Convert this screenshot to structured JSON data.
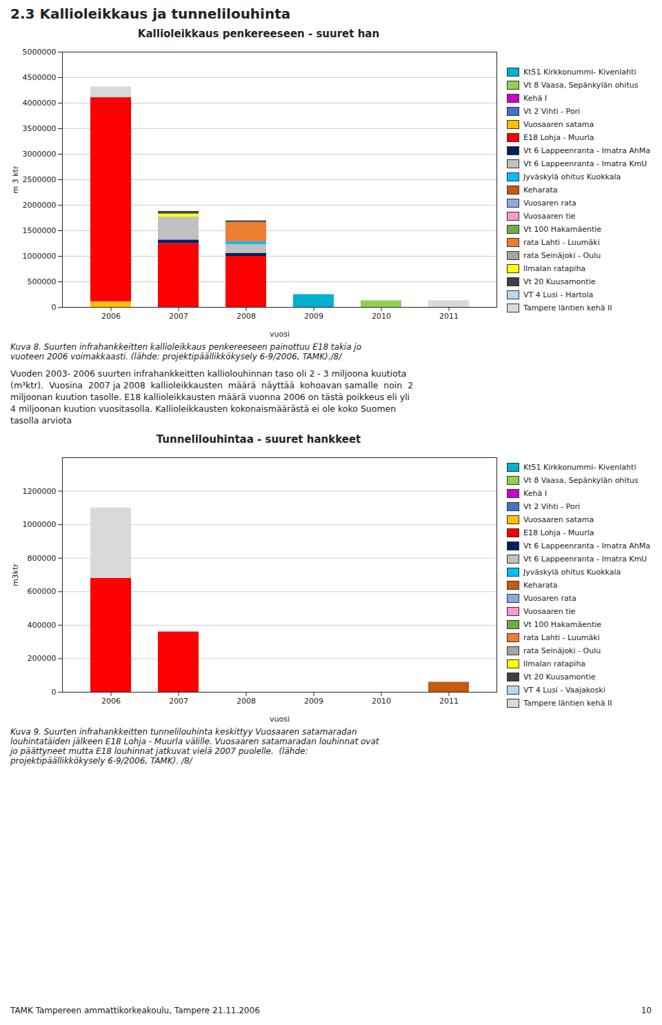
{
  "page_title": "2.3 Kallioleikkaus ja tunnelilouhinta",
  "body_text": "Vuoden 2003- 2006 suurten infrahankkeitten kalliolouhinnan taso oli 2 - 3 miljoona kuutiota\n(m³ktr).  Vuosina  2007 ja 2008  kallioleikkausten  määrä  näyttää  kohoavan samalle  noin  2\nmiljoonan kuution tasolle. E18 kallioleikkausten määrä vuonna 2006 on tästä poikkeus eli yli\n4 miljoonan kuution vuositasolla. Kallioleikkausten kokonaismäärästä ei ole koko Suomen\ntasolla arviota",
  "footer": [
    "TAMK Tampereen ammattikorkeakoulu, Tampere 21.11.2006",
    "10"
  ],
  "chart_data": [
    {
      "type": "bar",
      "stacked": true,
      "grid": true,
      "title": "Kallioleikkaus penkereeseen - suuret han",
      "ylabel": "m 3 ktr",
      "xlabel": "vuosi",
      "caption": "Kuva 8. Suurten infrahankkeitten kallioleikkaus penkereeseen painottuu E18 takia jo\nvuoteen 2006 voimakkaasti. (lähde: projektipäällikkökysely 6-9/2006, TAMK)./8/",
      "categories": [
        "2006",
        "2007",
        "2008",
        "2009",
        "2010",
        "2011"
      ],
      "ylim": [
        0,
        5000000
      ],
      "yticks": [
        0,
        500000,
        1000000,
        1500000,
        2000000,
        2500000,
        3000000,
        3500000,
        4000000,
        4500000,
        5000000
      ],
      "series": [
        {
          "name": "Kt51 Kirkkonummi- Kivenlahti",
          "color": "#00B0D0",
          "values": [
            0,
            0,
            0,
            250000,
            0,
            0
          ]
        },
        {
          "name": "Vt 8 Vaasa, Sepänkylän ohitus",
          "color": "#92D050",
          "values": [
            0,
            0,
            0,
            0,
            130000,
            0
          ]
        },
        {
          "name": "Kehä I",
          "color": "#CC00CC",
          "values": [
            0,
            0,
            0,
            0,
            0,
            0
          ]
        },
        {
          "name": "Vt 2 Vihti - Pori",
          "color": "#4472C4",
          "values": [
            0,
            0,
            0,
            0,
            0,
            0
          ]
        },
        {
          "name": "Vuosaaren satama",
          "color": "#FFC000",
          "values": [
            110000,
            0,
            0,
            0,
            0,
            0
          ]
        },
        {
          "name": "E18 Lohja - Muurla",
          "color": "#FF0000",
          "values": [
            4000000,
            1250000,
            1000000,
            0,
            0,
            0
          ]
        },
        {
          "name": "Vt 6 Lappeenranta - Imatra AhMa",
          "color": "#002060",
          "values": [
            0,
            70000,
            60000,
            0,
            0,
            0
          ]
        },
        {
          "name": "Vt 6 Lappeenranta - Imatra KmU",
          "color": "#C0C0C0",
          "values": [
            0,
            450000,
            170000,
            0,
            0,
            0
          ]
        },
        {
          "name": "Jyväskylä ohitus Kuokkala",
          "color": "#00BFFF",
          "values": [
            0,
            0,
            55000,
            0,
            0,
            0
          ]
        },
        {
          "name": "Keharata",
          "color": "#C55A11",
          "values": [
            0,
            0,
            0,
            0,
            0,
            0
          ]
        },
        {
          "name": "Vuosaren rata",
          "color": "#8EA9DB",
          "values": [
            0,
            0,
            0,
            0,
            0,
            0
          ]
        },
        {
          "name": "Vuosaaren tie",
          "color": "#FF99CC",
          "values": [
            0,
            0,
            0,
            0,
            0,
            0
          ]
        },
        {
          "name": "Vt 100 Hakamäentie",
          "color": "#70AD47",
          "values": [
            0,
            0,
            0,
            0,
            0,
            0
          ]
        },
        {
          "name": "rata Lahti - Luumäki",
          "color": "#ED7D31",
          "values": [
            0,
            0,
            380000,
            0,
            0,
            0
          ]
        },
        {
          "name": "rata Seinäjoki - Oulu",
          "color": "#A5A5A5",
          "values": [
            0,
            0,
            0,
            0,
            0,
            0
          ]
        },
        {
          "name": "Ilmalan ratapiha",
          "color": "#FFFF00",
          "values": [
            0,
            60000,
            0,
            0,
            0,
            0
          ]
        },
        {
          "name": "Vt 20 Kuusamontie",
          "color": "#404040",
          "values": [
            0,
            50000,
            30000,
            0,
            0,
            0
          ]
        },
        {
          "name": "VT 4 Lusi - Hartola",
          "color": "#BDD7EE",
          "values": [
            0,
            0,
            0,
            0,
            0,
            0
          ]
        },
        {
          "name": "Tampere läntien kehä II",
          "color": "#D9D9D9",
          "values": [
            210000,
            0,
            0,
            0,
            0,
            130000
          ]
        }
      ]
    },
    {
      "type": "bar",
      "stacked": true,
      "grid": true,
      "title": "Tunnelilouhintaa - suuret hankkeet",
      "ylabel": "m3ktr",
      "xlabel": "vuosi",
      "caption": "Kuva 9. Suurten infrahankkeitten tunnelilouhinta keskittyy Vuosaaren satamaradan\nlouhintatäiden jälkeen E18 Lohja - Muurla välille. Vuosaaren satamaradan louhinnat ovat\njo päättyneet mutta E18 louhinnat jatkuvat vielä 2007 puolelle.  (lähde:\nprojektipäällikkökysely 6-9/2006, TAMK). /8/",
      "categories": [
        "2006",
        "2007",
        "2008",
        "2009",
        "2010",
        "2011"
      ],
      "ylim": [
        0,
        1400000
      ],
      "yticks": [
        0,
        200000,
        400000,
        600000,
        800000,
        1000000,
        1200000
      ],
      "series": [
        {
          "name": "Kt51 Kirkkonummi- Kivenlahti",
          "color": "#00B0D0",
          "values": [
            0,
            0,
            0,
            0,
            0,
            0
          ]
        },
        {
          "name": "Vt 8 Vaasa, Sepänkylän ohitus",
          "color": "#92D050",
          "values": [
            0,
            0,
            0,
            0,
            0,
            0
          ]
        },
        {
          "name": "Kehä I",
          "color": "#CC00CC",
          "values": [
            0,
            0,
            0,
            0,
            0,
            0
          ]
        },
        {
          "name": "Vt 2 Vihti - Pori",
          "color": "#4472C4",
          "values": [
            0,
            0,
            0,
            0,
            0,
            0
          ]
        },
        {
          "name": "Vuosaaren satama",
          "color": "#FFC000",
          "values": [
            0,
            0,
            0,
            0,
            0,
            0
          ]
        },
        {
          "name": "E18 Lohja - Muurla",
          "color": "#FF0000",
          "values": [
            680000,
            360000,
            0,
            0,
            0,
            0
          ]
        },
        {
          "name": "Vt 6 Lappeenranta - Imatra AhMa",
          "color": "#002060",
          "values": [
            0,
            0,
            0,
            0,
            0,
            0
          ]
        },
        {
          "name": "Vt 6 Lappeenranta - Imatra KmU",
          "color": "#C0C0C0",
          "values": [
            0,
            0,
            0,
            0,
            0,
            0
          ]
        },
        {
          "name": "Jyväskylä ohitus Kuokkala",
          "color": "#00BFFF",
          "values": [
            0,
            0,
            0,
            0,
            0,
            0
          ]
        },
        {
          "name": "Keharata",
          "color": "#C55A11",
          "values": [
            0,
            0,
            0,
            0,
            0,
            60000
          ]
        },
        {
          "name": "Vuosaren rata",
          "color": "#8EA9DB",
          "values": [
            0,
            0,
            0,
            0,
            0,
            0
          ]
        },
        {
          "name": "Vuosaaren tie",
          "color": "#FF99CC",
          "values": [
            0,
            0,
            0,
            0,
            0,
            0
          ]
        },
        {
          "name": "Vt 100 Hakamäentie",
          "color": "#70AD47",
          "values": [
            0,
            0,
            0,
            0,
            0,
            0
          ]
        },
        {
          "name": "rata Lahti - Luumäki",
          "color": "#ED7D31",
          "values": [
            0,
            0,
            0,
            0,
            0,
            0
          ]
        },
        {
          "name": "rata Seinäjoki - Oulu",
          "color": "#A5A5A5",
          "values": [
            0,
            0,
            0,
            0,
            0,
            0
          ]
        },
        {
          "name": "Ilmalan ratapiha",
          "color": "#FFFF00",
          "values": [
            0,
            0,
            0,
            0,
            0,
            0
          ]
        },
        {
          "name": "Vt 20 Kuusamontie",
          "color": "#404040",
          "values": [
            0,
            0,
            0,
            0,
            0,
            0
          ]
        },
        {
          "name": "VT 4 Lusi - Vaajakoski",
          "color": "#BDD7EE",
          "values": [
            0,
            0,
            0,
            0,
            0,
            0
          ]
        },
        {
          "name": "Tampere läntien kehä II",
          "color": "#D9D9D9",
          "values": [
            420000,
            0,
            0,
            0,
            0,
            0
          ]
        }
      ]
    }
  ]
}
